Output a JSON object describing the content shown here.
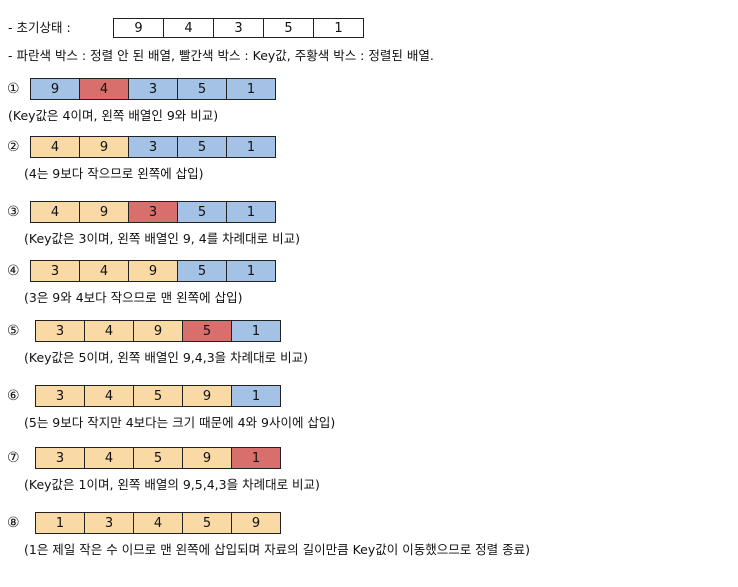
{
  "initial": {
    "label": "- 초기상태 :",
    "values": [
      "9",
      "4",
      "3",
      "5",
      "1"
    ]
  },
  "legend": "- 파란색 박스 : 정렬 안 된 배열, 빨간색 박스 : Key값, 주황색 박스 : 정렬된 배열.",
  "colors": {
    "blue": "#a4c2e6",
    "red": "#d96f6c",
    "orange": "#f9d9a4"
  },
  "steps": [
    {
      "label": "①",
      "cells": [
        [
          "9",
          "b"
        ],
        [
          "4",
          "r"
        ],
        [
          "3",
          "b"
        ],
        [
          "5",
          "b"
        ],
        [
          "1",
          "b"
        ]
      ],
      "note": "(Key값은 4이며, 왼쪽 배열인 9와 비교)"
    },
    {
      "label": "②",
      "cells": [
        [
          "4",
          "o"
        ],
        [
          "9",
          "o"
        ],
        [
          "3",
          "b"
        ],
        [
          "5",
          "b"
        ],
        [
          "1",
          "b"
        ]
      ],
      "note": "(4는 9보다 작으므로 왼쪽에 삽입)"
    },
    {
      "label": "③",
      "cells": [
        [
          "4",
          "o"
        ],
        [
          "9",
          "o"
        ],
        [
          "3",
          "r"
        ],
        [
          "5",
          "b"
        ],
        [
          "1",
          "b"
        ]
      ],
      "note": "(Key값은 3이며, 왼쪽 배열인 9, 4를 차례대로 비교)"
    },
    {
      "label": "④",
      "cells": [
        [
          "3",
          "o"
        ],
        [
          "4",
          "o"
        ],
        [
          "9",
          "o"
        ],
        [
          "5",
          "b"
        ],
        [
          "1",
          "b"
        ]
      ],
      "note": "(3은 9와 4보다 작으므로 맨 왼쪽에 삽입)"
    },
    {
      "label": "⑤",
      "cells": [
        [
          "3",
          "o"
        ],
        [
          "4",
          "o"
        ],
        [
          "9",
          "o"
        ],
        [
          "5",
          "r"
        ],
        [
          "1",
          "b"
        ]
      ],
      "note": "(Key값은 5이며, 왼쪽 배열인 9,4,3을 차례대로 비교)"
    },
    {
      "label": "⑥",
      "cells": [
        [
          "3",
          "o"
        ],
        [
          "4",
          "o"
        ],
        [
          "5",
          "o"
        ],
        [
          "9",
          "o"
        ],
        [
          "1",
          "b"
        ]
      ],
      "note": "(5는 9보다 작지만 4보다는 크기 때문에 4와 9사이에 삽입)"
    },
    {
      "label": "⑦",
      "cells": [
        [
          "3",
          "o"
        ],
        [
          "4",
          "o"
        ],
        [
          "5",
          "o"
        ],
        [
          "9",
          "o"
        ],
        [
          "1",
          "r"
        ]
      ],
      "note": "(Key값은 1이며, 왼쪽 배열의 9,5,4,3을 차례대로 비교)"
    },
    {
      "label": "⑧",
      "cells": [
        [
          "1",
          "o"
        ],
        [
          "3",
          "o"
        ],
        [
          "4",
          "o"
        ],
        [
          "5",
          "o"
        ],
        [
          "9",
          "o"
        ]
      ],
      "note": "(1은 제일 작은 수 이므로 맨 왼쪽에 삽입되며 자료의 길이만큼 Key값이 이동했으므로 정렬 종료)"
    }
  ]
}
